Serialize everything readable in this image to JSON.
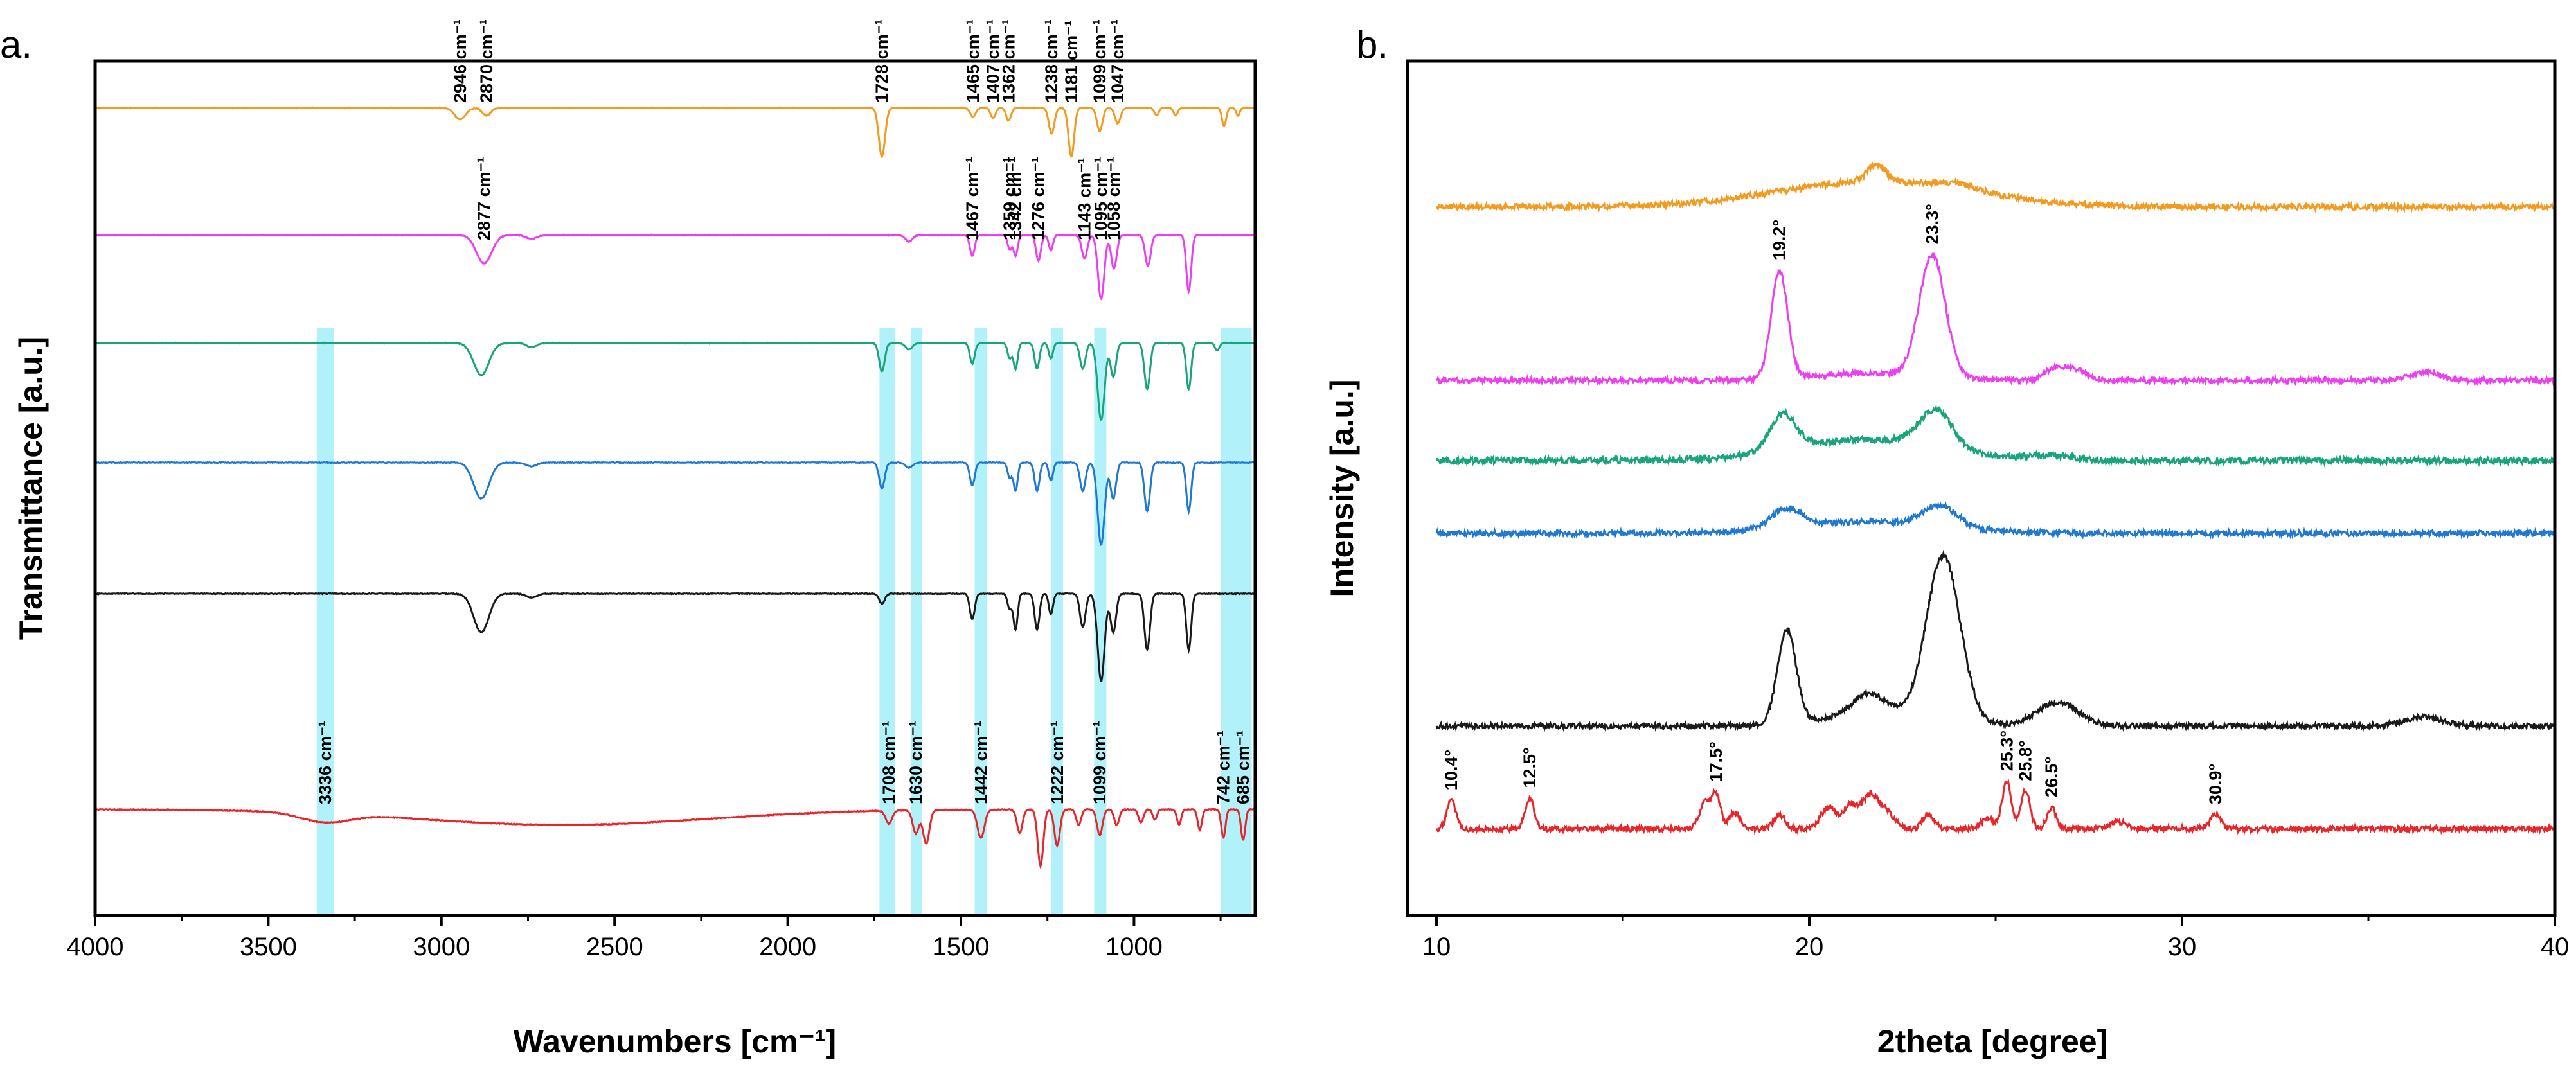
{
  "chart_data": [
    {
      "type": "line",
      "panel_label": "a.",
      "xlabel": "Wavenumbers [cm⁻¹]",
      "ylabel": "Transmittance [a.u.]",
      "xlim": [
        4000,
        650
      ],
      "x_reversed": true,
      "xticks": [
        "4000",
        "3500",
        "3000",
        "2500",
        "2000",
        "1500",
        "1000"
      ],
      "xtick_values": [
        4000,
        3500,
        3000,
        2500,
        2000,
        1500,
        1000
      ],
      "y_ticks_shown": false,
      "highlight_bands": [
        [
          3360,
          3310
        ],
        [
          1735,
          1690
        ],
        [
          1645,
          1612
        ],
        [
          1460,
          1425
        ],
        [
          1240,
          1205
        ],
        [
          1115,
          1080
        ],
        [
          750,
          660
        ]
      ],
      "colors": [
        "#f39a1f",
        "#ee3ef2",
        "#19a57c",
        "#1f78d1",
        "#1a1a1a",
        "#e8252a"
      ],
      "band_color": "#a8f0f8",
      "series": [
        {
          "color": "#f39a1f",
          "baseline": 0,
          "peaks": [
            [
              2946,
              0.45,
              16
            ],
            [
              2870,
              0.3,
              12
            ],
            [
              1728,
              1.9,
              9
            ],
            [
              1465,
              0.35,
              8
            ],
            [
              1407,
              0.4,
              7
            ],
            [
              1362,
              0.5,
              7
            ],
            [
              1238,
              1.0,
              8
            ],
            [
              1181,
              1.9,
              8
            ],
            [
              1099,
              0.9,
              8
            ],
            [
              1047,
              0.6,
              8
            ],
            [
              935,
              0.3,
              6
            ],
            [
              880,
              0.3,
              6
            ],
            [
              740,
              0.7,
              6
            ],
            [
              700,
              0.3,
              5
            ]
          ],
          "labels": [
            "2946 cm⁻¹",
            "2870 cm⁻¹",
            "1728 cm⁻¹",
            "1465 cm⁻¹",
            "1407 cm⁻¹",
            "1362 cm⁻¹",
            "1238 cm⁻¹",
            "1181 cm⁻¹",
            "1099 cm⁻¹",
            "1047 cm⁻¹"
          ]
        },
        {
          "color": "#ee3ef2",
          "baseline": -0.4,
          "peaks": [
            [
              2877,
              1.1,
              22
            ],
            [
              2740,
              0.15,
              15
            ],
            [
              1650,
              0.25,
              10
            ],
            [
              1467,
              0.8,
              7
            ],
            [
              1359,
              0.55,
              6
            ],
            [
              1342,
              0.8,
              6
            ],
            [
              1276,
              1.0,
              7
            ],
            [
              1240,
              0.6,
              6
            ],
            [
              1143,
              0.9,
              8
            ],
            [
              1095,
              2.5,
              9
            ],
            [
              1058,
              1.3,
              8
            ],
            [
              960,
              1.2,
              8
            ],
            [
              842,
              2.2,
              7
            ]
          ],
          "labels": [
            "2877 cm⁻¹",
            "1467 cm⁻¹",
            "1359 cm⁻¹",
            "1342 cm⁻¹",
            "1276 cm⁻¹",
            "1143 cm⁻¹",
            "1095 cm⁻¹",
            "1058 cm⁻¹"
          ]
        },
        {
          "color": "#19a57c",
          "baseline": -0.2,
          "peaks": [
            [
              2885,
              1.25,
              22
            ],
            [
              2740,
              0.15,
              15
            ],
            [
              1728,
              1.1,
              8
            ],
            [
              1650,
              0.25,
              10
            ],
            [
              1467,
              0.8,
              7
            ],
            [
              1359,
              0.6,
              6
            ],
            [
              1342,
              1.0,
              6
            ],
            [
              1280,
              1.0,
              7
            ],
            [
              1240,
              0.6,
              6
            ],
            [
              1148,
              1.0,
              8
            ],
            [
              1095,
              3.0,
              10
            ],
            [
              1060,
              1.3,
              8
            ],
            [
              962,
              1.8,
              8
            ],
            [
              842,
              1.8,
              7
            ],
            [
              760,
              0.3,
              6
            ]
          ],
          "labels": []
        },
        {
          "color": "#1f78d1",
          "baseline": -0.2,
          "peaks": [
            [
              2885,
              1.4,
              22
            ],
            [
              2740,
              0.15,
              15
            ],
            [
              1728,
              1.0,
              8
            ],
            [
              1650,
              0.2,
              10
            ],
            [
              1467,
              0.9,
              7
            ],
            [
              1359,
              0.6,
              6
            ],
            [
              1342,
              1.1,
              6
            ],
            [
              1280,
              1.1,
              7
            ],
            [
              1240,
              0.7,
              6
            ],
            [
              1148,
              1.1,
              8
            ],
            [
              1095,
              3.2,
              10
            ],
            [
              1060,
              1.4,
              8
            ],
            [
              962,
              1.9,
              8
            ],
            [
              842,
              1.9,
              7
            ]
          ],
          "labels": []
        },
        {
          "color": "#1a1a1a",
          "baseline": -0.2,
          "peaks": [
            [
              2885,
              1.5,
              22
            ],
            [
              2740,
              0.15,
              15
            ],
            [
              1728,
              0.4,
              8
            ],
            [
              1467,
              1.0,
              7
            ],
            [
              1359,
              0.6,
              6
            ],
            [
              1342,
              1.4,
              6
            ],
            [
              1280,
              1.4,
              7
            ],
            [
              1240,
              0.8,
              6
            ],
            [
              1148,
              1.3,
              8
            ],
            [
              1095,
              3.4,
              10
            ],
            [
              1060,
              1.5,
              8
            ],
            [
              962,
              2.2,
              8
            ],
            [
              842,
              2.2,
              7
            ]
          ],
          "labels": []
        },
        {
          "color": "#e8252a",
          "baseline": 0,
          "peaks": [
            [
              3336,
              0.35,
              70
            ],
            [
              2650,
              0.6,
              420
            ],
            [
              1708,
              0.5,
              9
            ],
            [
              1630,
              0.9,
              9
            ],
            [
              1600,
              1.3,
              9
            ],
            [
              1442,
              1.1,
              10
            ],
            [
              1330,
              0.9,
              8
            ],
            [
              1270,
              2.2,
              8
            ],
            [
              1222,
              1.4,
              8
            ],
            [
              1160,
              0.6,
              7
            ],
            [
              1099,
              1.0,
              8
            ],
            [
              1050,
              0.6,
              7
            ],
            [
              980,
              0.5,
              7
            ],
            [
              940,
              0.4,
              6
            ],
            [
              870,
              0.6,
              6
            ],
            [
              810,
              0.8,
              6
            ],
            [
              742,
              1.1,
              6
            ],
            [
              685,
              1.2,
              6
            ]
          ],
          "labels": [
            "3336 cm⁻¹",
            "1708 cm⁻¹",
            "1630 cm⁻¹",
            "1442 cm⁻¹",
            "1222 cm⁻¹",
            "1099 cm⁻¹",
            "742 cm⁻¹",
            "685 cm⁻¹"
          ]
        }
      ]
    },
    {
      "type": "line",
      "panel_label": "b.",
      "xlabel": "2theta [degree]",
      "ylabel": "Intensity [a.u.]",
      "xlim": [
        10,
        40
      ],
      "xticks": [
        "10",
        "20",
        "30",
        "40"
      ],
      "xtick_values": [
        10,
        20,
        30,
        40
      ],
      "y_ticks_shown": false,
      "series": [
        {
          "color": "#f39a1f",
          "baseline": 0,
          "peaks": [
            [
              21.8,
              0.55,
              2.6
            ],
            [
              21.8,
              0.35,
              0.25
            ],
            [
              24.0,
              0.12,
              0.5
            ]
          ],
          "labels": []
        },
        {
          "color": "#ee3ef2",
          "baseline": 0,
          "peaks": [
            [
              19.2,
              2.3,
              0.22
            ],
            [
              23.3,
              2.6,
              0.35
            ],
            [
              21.6,
              0.15,
              1.5
            ],
            [
              26.6,
              0.25,
              0.3
            ],
            [
              27.2,
              0.2,
              0.3
            ],
            [
              36.5,
              0.18,
              0.4
            ]
          ],
          "labels": [
            "19.2°",
            "23.3°"
          ]
        },
        {
          "color": "#19a57c",
          "baseline": 0,
          "peaks": [
            [
              19.3,
              0.75,
              0.35
            ],
            [
              23.4,
              0.8,
              0.45
            ],
            [
              21.5,
              0.45,
              2.0
            ],
            [
              26.5,
              0.1,
              0.6
            ]
          ],
          "labels": []
        },
        {
          "color": "#1f78d1",
          "baseline": 0,
          "peaks": [
            [
              19.4,
              0.4,
              0.4
            ],
            [
              23.5,
              0.45,
              0.45
            ],
            [
              21.5,
              0.25,
              2.0
            ]
          ],
          "labels": []
        },
        {
          "color": "#1a1a1a",
          "baseline": 0,
          "peaks": [
            [
              19.4,
              2.0,
              0.25
            ],
            [
              23.6,
              3.5,
              0.45
            ],
            [
              21.6,
              0.45,
              0.45
            ],
            [
              22.0,
              0.25,
              1.5
            ],
            [
              26.5,
              0.35,
              0.5
            ],
            [
              27.0,
              0.2,
              0.5
            ],
            [
              36.5,
              0.2,
              0.5
            ]
          ],
          "labels": []
        },
        {
          "color": "#e8252a",
          "baseline": 0,
          "peaks": [
            [
              10.4,
              0.6,
              0.12
            ],
            [
              12.5,
              0.65,
              0.12
            ],
            [
              17.2,
              0.55,
              0.15
            ],
            [
              17.5,
              0.7,
              0.12
            ],
            [
              18.0,
              0.35,
              0.15
            ],
            [
              19.2,
              0.3,
              0.15
            ],
            [
              20.5,
              0.45,
              0.2
            ],
            [
              21.1,
              0.5,
              0.2
            ],
            [
              21.6,
              0.6,
              0.2
            ],
            [
              22.0,
              0.4,
              0.25
            ],
            [
              23.2,
              0.3,
              0.15
            ],
            [
              24.8,
              0.2,
              0.2
            ],
            [
              25.3,
              1.0,
              0.12
            ],
            [
              25.8,
              0.8,
              0.12
            ],
            [
              26.5,
              0.45,
              0.12
            ],
            [
              28.3,
              0.15,
              0.2
            ],
            [
              30.9,
              0.3,
              0.15
            ]
          ],
          "labels": [
            "10.4°",
            "12.5°",
            "17.5°",
            "25.3°",
            "25.8°",
            "26.5°",
            "30.9°"
          ]
        }
      ]
    }
  ]
}
